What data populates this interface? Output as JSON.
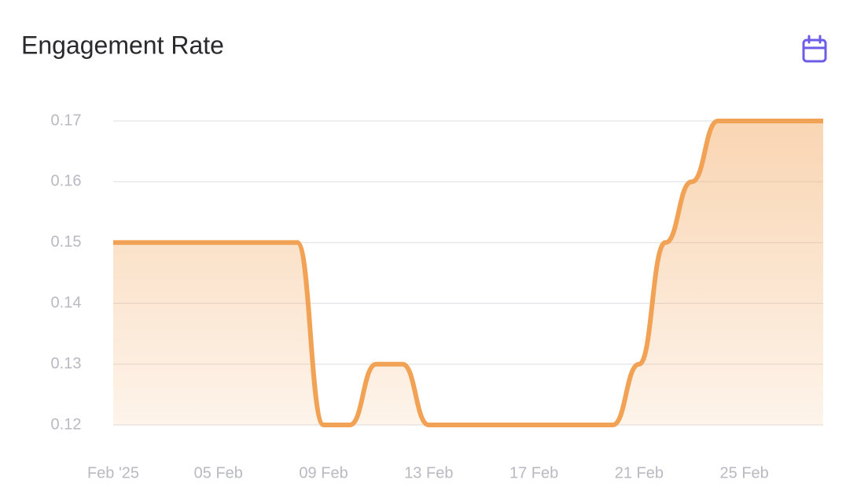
{
  "chart_data": {
    "type": "line",
    "title": "Engagement Rate",
    "x": [
      "2025-02-01",
      "2025-02-02",
      "2025-02-03",
      "2025-02-04",
      "2025-02-05",
      "2025-02-06",
      "2025-02-07",
      "2025-02-08",
      "2025-02-09",
      "2025-02-10",
      "2025-02-11",
      "2025-02-12",
      "2025-02-13",
      "2025-02-14",
      "2025-02-15",
      "2025-02-16",
      "2025-02-17",
      "2025-02-18",
      "2025-02-19",
      "2025-02-20",
      "2025-02-21",
      "2025-02-22",
      "2025-02-23",
      "2025-02-24",
      "2025-02-25",
      "2025-02-26",
      "2025-02-27",
      "2025-02-28"
    ],
    "values": [
      0.15,
      0.15,
      0.15,
      0.15,
      0.15,
      0.15,
      0.15,
      0.15,
      0.12,
      0.12,
      0.13,
      0.13,
      0.12,
      0.12,
      0.12,
      0.12,
      0.12,
      0.12,
      0.12,
      0.12,
      0.13,
      0.15,
      0.16,
      0.17,
      0.17,
      0.17,
      0.17,
      0.17
    ],
    "color": "#f2a255",
    "xlim": [
      "2025-02-01",
      "2025-02-28"
    ],
    "xticks": [
      {
        "value": "2025-02-01",
        "label": "Feb '25"
      },
      {
        "value": "2025-02-05",
        "label": "05 Feb"
      },
      {
        "value": "2025-02-09",
        "label": "09 Feb"
      },
      {
        "value": "2025-02-13",
        "label": "13 Feb"
      },
      {
        "value": "2025-02-17",
        "label": "17 Feb"
      },
      {
        "value": "2025-02-21",
        "label": "21 Feb"
      },
      {
        "value": "2025-02-25",
        "label": "25 Feb"
      }
    ],
    "ylim": [
      0.12,
      0.17
    ],
    "yticks": [
      0.12,
      0.13,
      0.14,
      0.15,
      0.16,
      0.17
    ],
    "grid": true
  }
}
